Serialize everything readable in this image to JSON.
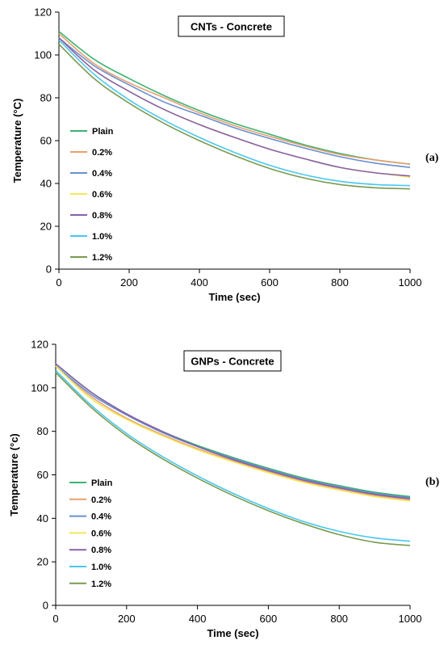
{
  "chart_data": [
    {
      "type": "line",
      "title": "CNTs - Concrete",
      "panel_label": "(a)",
      "xlabel": "Time (sec)",
      "ylabel": "Temperature (°C)",
      "xlim": [
        0,
        1000
      ],
      "ylim": [
        0,
        120
      ],
      "xticks": [
        0,
        200,
        400,
        600,
        800,
        1000
      ],
      "yticks": [
        0,
        20,
        40,
        60,
        80,
        100,
        120
      ],
      "grid": false,
      "legend_position": "left",
      "x": [
        0,
        100,
        200,
        300,
        400,
        500,
        600,
        700,
        800,
        900,
        1000
      ],
      "series": [
        {
          "name": "Plain",
          "color": "#3cb371",
          "values": [
            111,
            98,
            89,
            81,
            74,
            68,
            63,
            58,
            54,
            51,
            49
          ]
        },
        {
          "name": "0.2%",
          "color": "#e8a070",
          "values": [
            110,
            96,
            87,
            80,
            73,
            67,
            62,
            57.5,
            53.5,
            51,
            49
          ]
        },
        {
          "name": "0.4%",
          "color": "#6a8fd0",
          "values": [
            108,
            95,
            86,
            78,
            72,
            66,
            61,
            56.5,
            52.5,
            49.5,
            47.5
          ]
        },
        {
          "name": "0.6%",
          "color": "#f2e85a",
          "values": [
            108,
            93,
            83,
            74.5,
            67.5,
            61.5,
            56,
            51.5,
            47.5,
            45,
            43
          ]
        },
        {
          "name": "0.8%",
          "color": "#8860a8",
          "values": [
            108,
            93,
            83,
            74.5,
            67.5,
            61.5,
            56,
            51.5,
            47.5,
            45,
            43.5
          ]
        },
        {
          "name": "1.0%",
          "color": "#48c8f0",
          "values": [
            107,
            91,
            79,
            69.5,
            61.5,
            54.5,
            48.5,
            44,
            41,
            39.5,
            39
          ]
        },
        {
          "name": "1.2%",
          "color": "#7a9a50",
          "values": [
            105,
            89,
            77.5,
            68,
            60,
            53,
            47,
            42.5,
            39.5,
            38,
            37.5
          ]
        }
      ]
    },
    {
      "type": "line",
      "title": "GNPs - Concrete",
      "panel_label": "(b)",
      "xlabel": "Time (sec)",
      "ylabel": "Temperature (°c)",
      "xlim": [
        0,
        1000
      ],
      "ylim": [
        0,
        120
      ],
      "xticks": [
        0,
        200,
        400,
        600,
        800,
        1000
      ],
      "yticks": [
        0,
        20,
        40,
        60,
        80,
        100,
        120
      ],
      "grid": false,
      "legend_position": "left",
      "x": [
        0,
        100,
        200,
        300,
        400,
        500,
        600,
        700,
        800,
        900,
        1000
      ],
      "series": [
        {
          "name": "Plain",
          "color": "#3cb371",
          "values": [
            111,
            98,
            88,
            80,
            73.5,
            68,
            63,
            58.5,
            55,
            52,
            50
          ]
        },
        {
          "name": "0.2%",
          "color": "#e8a070",
          "values": [
            110,
            96,
            86,
            78.5,
            72,
            66.5,
            61.5,
            57,
            53.5,
            50.5,
            48.5
          ]
        },
        {
          "name": "0.4%",
          "color": "#6a8fd0",
          "values": [
            110,
            97,
            87.5,
            79.5,
            73,
            67.5,
            62.5,
            58,
            54.5,
            51.5,
            49.5
          ]
        },
        {
          "name": "0.6%",
          "color": "#f2e85a",
          "values": [
            110,
            95,
            85.5,
            78,
            71.5,
            66,
            61,
            56.5,
            53,
            50,
            48
          ]
        },
        {
          "name": "0.8%",
          "color": "#8860a8",
          "values": [
            111,
            98,
            88,
            80,
            73,
            67,
            62,
            57.5,
            54,
            51,
            49
          ]
        },
        {
          "name": "1.0%",
          "color": "#48c8f0",
          "values": [
            108,
            92,
            79,
            68.5,
            59.5,
            51.5,
            44.5,
            38.5,
            34,
            31,
            29.5
          ]
        },
        {
          "name": "1.2%",
          "color": "#7a9a50",
          "values": [
            107,
            91,
            78,
            67.5,
            58.5,
            50.5,
            43.5,
            37.5,
            32.5,
            29,
            27.5
          ]
        }
      ]
    }
  ]
}
